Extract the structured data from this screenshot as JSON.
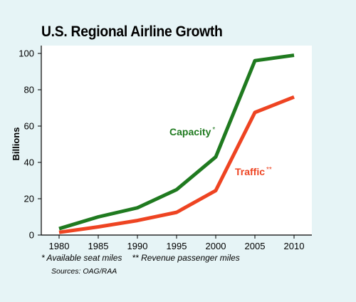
{
  "chart_data": {
    "type": "line",
    "title": "U.S. Regional Airline Growth",
    "xlabel": "",
    "ylabel": "Billions",
    "x": [
      1980,
      1985,
      1990,
      1995,
      2000,
      2005,
      2010
    ],
    "xtick_labels": [
      "1980",
      "1985",
      "1990",
      "1995",
      "2000",
      "2005",
      "2010"
    ],
    "ytick_labels": [
      "0",
      "20",
      "40",
      "60",
      "80",
      "100"
    ],
    "ylim": [
      0,
      100
    ],
    "grid": false,
    "series": [
      {
        "name": "Capacity",
        "marker": "*",
        "color": "#1f7a1f",
        "values": [
          3.5,
          10,
          15,
          25,
          43,
          96,
          99
        ]
      },
      {
        "name": "Traffic",
        "marker": "**",
        "color": "#ee4422",
        "values": [
          1.5,
          4.5,
          8,
          12.5,
          24.5,
          67.5,
          76
        ]
      }
    ]
  },
  "footnotes": {
    "capacity_note": "* Available seat miles",
    "traffic_note": "** Revenue passenger miles",
    "source": "Sources: OAG/RAA"
  }
}
